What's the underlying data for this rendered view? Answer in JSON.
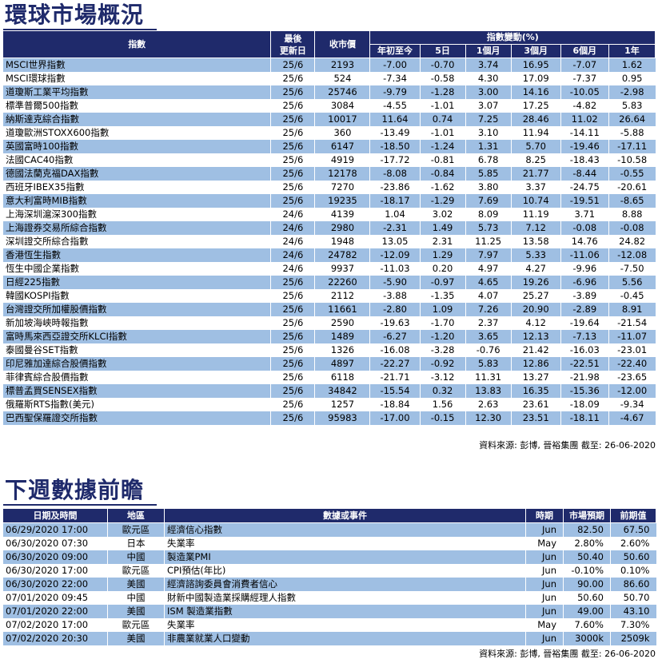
{
  "section1": {
    "title": "環球市場概況",
    "headers": {
      "index": "指數",
      "last_update": "最後更新日",
      "last_update_l1": "最後",
      "last_update_l2": "更新日",
      "close": "收市價",
      "change_group": "指數變動(%)",
      "ytd": "年初至今",
      "d5": "5日",
      "m1": "1個月",
      "m3": "3個月",
      "m6": "6個月",
      "y1": "1年"
    },
    "rows": [
      {
        "name": "MSCI世界指數",
        "date": "25/6",
        "close": "2193",
        "ytd": "-7.00",
        "d5": "-0.70",
        "m1": "3.74",
        "m3": "16.95",
        "m6": "-7.07",
        "y1": "1.62"
      },
      {
        "name": "MSCI環球指數",
        "date": "25/6",
        "close": "524",
        "ytd": "-7.34",
        "d5": "-0.58",
        "m1": "4.30",
        "m3": "17.09",
        "m6": "-7.37",
        "y1": "0.95"
      },
      {
        "name": "道瓊斯工業平均指數",
        "date": "25/6",
        "close": "25746",
        "ytd": "-9.79",
        "d5": "-1.28",
        "m1": "3.00",
        "m3": "14.16",
        "m6": "-10.05",
        "y1": "-2.98"
      },
      {
        "name": "標準普爾500指數",
        "date": "25/6",
        "close": "3084",
        "ytd": "-4.55",
        "d5": "-1.01",
        "m1": "3.07",
        "m3": "17.25",
        "m6": "-4.82",
        "y1": "5.83"
      },
      {
        "name": "納斯達克綜合指數",
        "date": "25/6",
        "close": "10017",
        "ytd": "11.64",
        "d5": "0.74",
        "m1": "7.25",
        "m3": "28.46",
        "m6": "11.02",
        "y1": "26.64"
      },
      {
        "name": "道瓊歐洲STOXX600指數",
        "date": "25/6",
        "close": "360",
        "ytd": "-13.49",
        "d5": "-1.01",
        "m1": "3.10",
        "m3": "11.94",
        "m6": "-14.11",
        "y1": "-5.88"
      },
      {
        "name": "英國富時100指數",
        "date": "25/6",
        "close": "6147",
        "ytd": "-18.50",
        "d5": "-1.24",
        "m1": "1.31",
        "m3": "5.70",
        "m6": "-19.46",
        "y1": "-17.11"
      },
      {
        "name": "法國CAC40指數",
        "date": "25/6",
        "close": "4919",
        "ytd": "-17.72",
        "d5": "-0.81",
        "m1": "6.78",
        "m3": "8.25",
        "m6": "-18.43",
        "y1": "-10.58"
      },
      {
        "name": "德國法蘭克福DAX指數",
        "date": "25/6",
        "close": "12178",
        "ytd": "-8.08",
        "d5": "-0.84",
        "m1": "5.85",
        "m3": "21.77",
        "m6": "-8.44",
        "y1": "-0.55"
      },
      {
        "name": "西班牙IBEX35指數",
        "date": "25/6",
        "close": "7270",
        "ytd": "-23.86",
        "d5": "-1.62",
        "m1": "3.80",
        "m3": "3.37",
        "m6": "-24.75",
        "y1": "-20.61"
      },
      {
        "name": "意大利富時MIB指數",
        "date": "25/6",
        "close": "19235",
        "ytd": "-18.17",
        "d5": "-1.29",
        "m1": "7.69",
        "m3": "10.74",
        "m6": "-19.51",
        "y1": "-8.65"
      },
      {
        "name": "上海深圳滬深300指數",
        "date": "24/6",
        "close": "4139",
        "ytd": "1.04",
        "d5": "3.02",
        "m1": "8.09",
        "m3": "11.19",
        "m6": "3.71",
        "y1": "8.88"
      },
      {
        "name": "上海證券交易所綜合指數",
        "date": "24/6",
        "close": "2980",
        "ytd": "-2.31",
        "d5": "1.49",
        "m1": "5.73",
        "m3": "7.12",
        "m6": "-0.08",
        "y1": "-0.08"
      },
      {
        "name": "深圳證交所綜合指數",
        "date": "24/6",
        "close": "1948",
        "ytd": "13.05",
        "d5": "2.31",
        "m1": "11.25",
        "m3": "13.58",
        "m6": "14.76",
        "y1": "24.82"
      },
      {
        "name": "香港恆生指數",
        "date": "24/6",
        "close": "24782",
        "ytd": "-12.09",
        "d5": "1.29",
        "m1": "7.97",
        "m3": "5.33",
        "m6": "-11.06",
        "y1": "-12.08"
      },
      {
        "name": "恆生中國企業指數",
        "date": "24/6",
        "close": "9937",
        "ytd": "-11.03",
        "d5": "0.20",
        "m1": "4.97",
        "m3": "4.27",
        "m6": "-9.96",
        "y1": "-7.50"
      },
      {
        "name": "日經225指數",
        "date": "25/6",
        "close": "22260",
        "ytd": "-5.90",
        "d5": "-0.97",
        "m1": "4.65",
        "m3": "19.26",
        "m6": "-6.96",
        "y1": "5.56"
      },
      {
        "name": "韓國KOSPI指數",
        "date": "25/6",
        "close": "2112",
        "ytd": "-3.88",
        "d5": "-1.35",
        "m1": "4.07",
        "m3": "25.27",
        "m6": "-3.89",
        "y1": "-0.45"
      },
      {
        "name": "台灣證交所加權股價指數",
        "date": "25/6",
        "close": "11661",
        "ytd": "-2.80",
        "d5": "1.09",
        "m1": "7.26",
        "m3": "20.90",
        "m6": "-2.89",
        "y1": "8.91"
      },
      {
        "name": "新加坡海峽時報指數",
        "date": "25/6",
        "close": "2590",
        "ytd": "-19.63",
        "d5": "-1.70",
        "m1": "2.37",
        "m3": "4.12",
        "m6": "-19.64",
        "y1": "-21.54"
      },
      {
        "name": "富時馬來西亞證交所KLCI指數",
        "date": "25/6",
        "close": "1489",
        "ytd": "-6.27",
        "d5": "-1.20",
        "m1": "3.65",
        "m3": "12.13",
        "m6": "-7.13",
        "y1": "-11.07"
      },
      {
        "name": "泰國曼谷SET指數",
        "date": "25/6",
        "close": "1326",
        "ytd": "-16.08",
        "d5": "-3.28",
        "m1": "-0.76",
        "m3": "21.42",
        "m6": "-16.03",
        "y1": "-23.01"
      },
      {
        "name": "印尼雅加達綜合股價指數",
        "date": "25/6",
        "close": "4897",
        "ytd": "-22.27",
        "d5": "-0.92",
        "m1": "5.83",
        "m3": "12.86",
        "m6": "-22.51",
        "y1": "-22.40"
      },
      {
        "name": "菲律賓綜合股價指數",
        "date": "25/6",
        "close": "6118",
        "ytd": "-21.71",
        "d5": "-3.12",
        "m1": "11.31",
        "m3": "13.27",
        "m6": "-21.98",
        "y1": "-23.65"
      },
      {
        "name": "標普孟買SENSEX指數",
        "date": "25/6",
        "close": "34842",
        "ytd": "-15.54",
        "d5": "0.32",
        "m1": "13.83",
        "m3": "16.35",
        "m6": "-15.36",
        "y1": "-12.00"
      },
      {
        "name": "俄羅斯RTS指數(美元)",
        "date": "25/6",
        "close": "1257",
        "ytd": "-18.84",
        "d5": "1.56",
        "m1": "2.63",
        "m3": "23.61",
        "m6": "-18.09",
        "y1": "-9.34"
      },
      {
        "name": "巴西聖保羅證交所指數",
        "date": "25/6",
        "close": "95983",
        "ytd": "-17.00",
        "d5": "-0.15",
        "m1": "12.30",
        "m3": "23.51",
        "m6": "-18.11",
        "y1": "-4.67"
      }
    ],
    "source": "資料來源: 彭博, 晉裕集團 截至: 26-06-2020"
  },
  "section2": {
    "title": "下週數據前瞻",
    "headers": {
      "datetime": "日期及時間",
      "region": "地區",
      "event": "數據或事件",
      "period": "時期",
      "forecast": "市場預期",
      "previous": "前期值"
    },
    "rows": [
      {
        "datetime": "06/29/2020 17:00",
        "region": "歐元區",
        "event": "經濟信心指數",
        "period": "Jun",
        "forecast": "82.50",
        "previous": "67.50"
      },
      {
        "datetime": "06/30/2020 07:30",
        "region": "日本",
        "event": "失業率",
        "period": "May",
        "forecast": "2.80%",
        "previous": "2.60%"
      },
      {
        "datetime": "06/30/2020 09:00",
        "region": "中國",
        "event": "製造業PMI",
        "period": "Jun",
        "forecast": "50.40",
        "previous": "50.60"
      },
      {
        "datetime": "06/30/2020 17:00",
        "region": "歐元區",
        "event": "CPI預估(年比)",
        "period": "Jun",
        "forecast": "-0.10%",
        "previous": "0.10%"
      },
      {
        "datetime": "06/30/2020 22:00",
        "region": "美國",
        "event": "經濟諮詢委員會消費者信心",
        "period": "Jun",
        "forecast": "90.00",
        "previous": "86.60"
      },
      {
        "datetime": "07/01/2020 09:45",
        "region": "中國",
        "event": "財新中國製造業採購經理人指數",
        "period": "Jun",
        "forecast": "50.60",
        "previous": "50.70"
      },
      {
        "datetime": "07/01/2020 22:00",
        "region": "美國",
        "event": "ISM 製造業指數",
        "period": "Jun",
        "forecast": "49.00",
        "previous": "43.10"
      },
      {
        "datetime": "07/02/2020 17:00",
        "region": "歐元區",
        "event": "失業率",
        "period": "May",
        "forecast": "7.60%",
        "previous": "7.30%"
      },
      {
        "datetime": "07/02/2020 20:30",
        "region": "美國",
        "event": "非農業就業人口變動",
        "period": "Jun",
        "forecast": "3000k",
        "previous": "2509k"
      }
    ],
    "source": "資料來源: 彭博, 晉裕集團 截至: 26-06-2020"
  },
  "colors": {
    "header_bg": "#1f2a6b",
    "row_alt": "#9fbfe3",
    "title": "#1f2a6b"
  }
}
